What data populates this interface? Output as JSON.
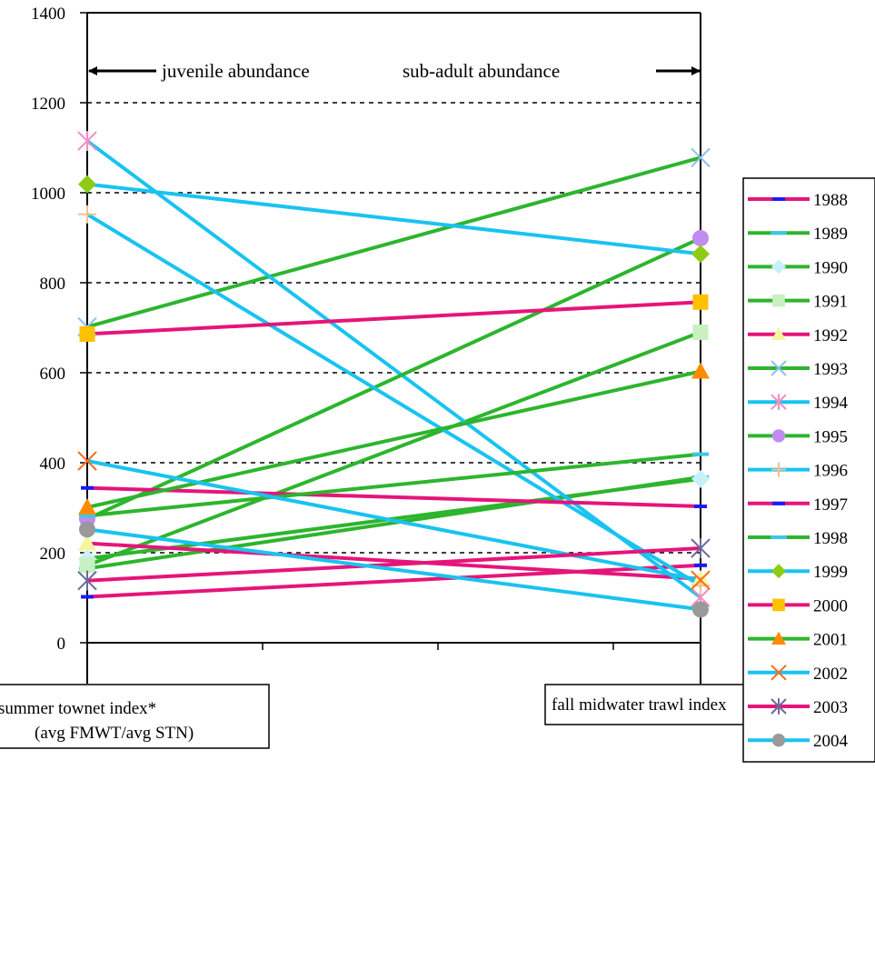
{
  "chart_data": {
    "type": "line",
    "title": "",
    "xlabel": "",
    "ylabel": "",
    "ylim": [
      0,
      1400
    ],
    "yticks": [
      0,
      200,
      400,
      600,
      800,
      1000,
      1200,
      1400
    ],
    "gridlines": [
      200,
      400,
      600,
      800,
      1000,
      1200
    ],
    "grid": "dashed horizontal",
    "legend_position": "right",
    "annotations": {
      "left_arrow_label": "juvenile abundance",
      "right_arrow_label": "sub-adult abundance"
    },
    "x_labels": {
      "left_line1": "summer townet index*",
      "left_line2": "(avg FMWT/avg STN)",
      "right": "fall midwater trawl index"
    },
    "series": [
      {
        "name": "1988",
        "color": "#e6147a",
        "marker": "dash-blue",
        "values": [
          102,
          172
        ]
      },
      {
        "name": "1989",
        "color": "#2db52d",
        "marker": "dash-cyan",
        "values": [
          165,
          368
        ]
      },
      {
        "name": "1990",
        "color": "#2db52d",
        "marker": "diamond",
        "marker_color": "#c8f0f8",
        "values": [
          187,
          364
        ]
      },
      {
        "name": "1991",
        "color": "#2db52d",
        "marker": "square",
        "marker_color": "#c8f0c0",
        "values": [
          172,
          690
        ]
      },
      {
        "name": "1992",
        "color": "#e6147a",
        "marker": "triangle",
        "marker_color": "#f5f5a0",
        "values": [
          221,
          142
        ]
      },
      {
        "name": "1993",
        "color": "#2db52d",
        "marker": "x",
        "marker_color": "#8cc0f0",
        "values": [
          702,
          1078
        ]
      },
      {
        "name": "1994",
        "color": "#19c3f0",
        "marker": "star",
        "marker_color": "#f58cc0",
        "values": [
          1115,
          101
        ]
      },
      {
        "name": "1995",
        "color": "#2db52d",
        "marker": "circle",
        "marker_color": "#c08cf0",
        "values": [
          275,
          899
        ]
      },
      {
        "name": "1996",
        "color": "#19c3f0",
        "marker": "plus",
        "marker_color": "#f5c08c",
        "values": [
          952,
          127
        ]
      },
      {
        "name": "1997",
        "color": "#e6147a",
        "marker": "dash-blue",
        "values": [
          344,
          303
        ]
      },
      {
        "name": "1998",
        "color": "#2db52d",
        "marker": "dash-cyan",
        "values": [
          282,
          419
        ]
      },
      {
        "name": "1999",
        "color": "#19c3f0",
        "marker": "diamond",
        "marker_color": "#8ccc14",
        "values": [
          1019,
          864
        ]
      },
      {
        "name": "2000",
        "color": "#e6147a",
        "marker": "square",
        "marker_color": "#ffc000",
        "values": [
          686,
          757
        ]
      },
      {
        "name": "2001",
        "color": "#2db52d",
        "marker": "triangle",
        "marker_color": "#ff8c00",
        "values": [
          301,
          603
        ]
      },
      {
        "name": "2002",
        "color": "#19c3f0",
        "marker": "x",
        "marker_color": "#ff6a14",
        "values": [
          404,
          139
        ]
      },
      {
        "name": "2003",
        "color": "#e6147a",
        "marker": "star",
        "marker_color": "#6a6a9a",
        "values": [
          138,
          210
        ]
      },
      {
        "name": "2004",
        "color": "#19c3f0",
        "marker": "circle",
        "marker_color": "#999999",
        "values": [
          252,
          74
        ]
      }
    ]
  }
}
